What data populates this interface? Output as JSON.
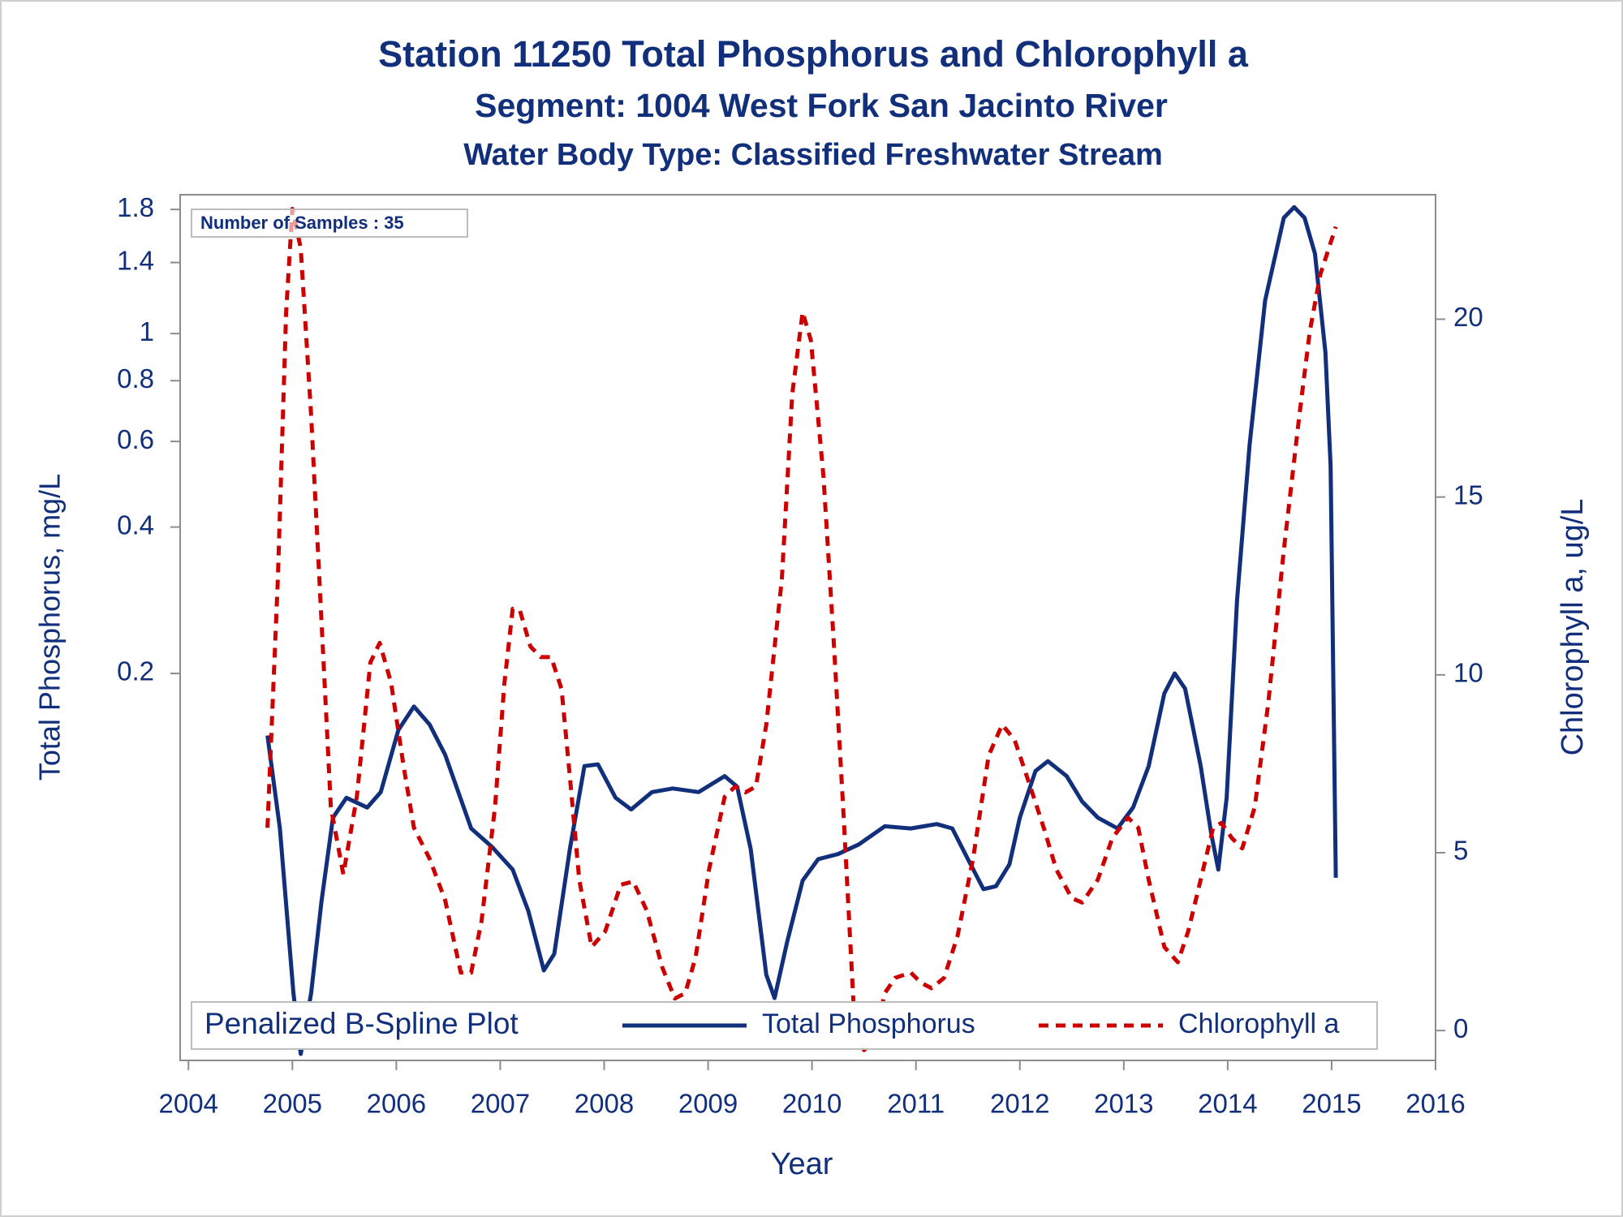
{
  "chart_data": {
    "type": "line",
    "title": "Station 11250  Total Phosphorus and Chlorophyll a",
    "subtitle": "Segment: 1004  West Fork San Jacinto River",
    "subtitle2": "Water Body Type: Classified Freshwater Stream",
    "annotation": "Number of Samples : 35",
    "legend_title": "Penalized B-Spline Plot",
    "legend": "bottom",
    "xlabel": "Year",
    "ylabel": "Total Phosphorus, mg/L",
    "y2label": "Chlorophyll a, ug/L",
    "xlim": [
      2003.92,
      2016
    ],
    "xticks": [
      2004,
      2005,
      2006,
      2007,
      2008,
      2009,
      2010,
      2011,
      2012,
      2013,
      2014,
      2015,
      2016
    ],
    "ylim": [
      0.032,
      1.93
    ],
    "ylog": true,
    "yticks": [
      0.2,
      0.4,
      0.6,
      0.8,
      1,
      1.4,
      1.8
    ],
    "y2lim": [
      -0.84,
      23.5
    ],
    "y2ticks": [
      0,
      5,
      10,
      15,
      20
    ],
    "series": [
      {
        "name": "Total Phosphorus",
        "color": "#112f7a",
        "dash": "solid",
        "x": [
          2004.76,
          2004.88,
          2005.01,
          2005.08,
          2005.18,
          2005.28,
          2005.39,
          2005.52,
          2005.72,
          2005.85,
          2006.02,
          2006.17,
          2006.32,
          2006.47,
          2006.72,
          2006.92,
          2007.12,
          2007.27,
          2007.42,
          2007.52,
          2007.67,
          2007.81,
          2007.94,
          2008.11,
          2008.26,
          2008.46,
          2008.66,
          2008.91,
          2009.16,
          2009.28,
          2009.41,
          2009.56,
          2009.64,
          2009.76,
          2009.91,
          2010.06,
          2010.25,
          2010.45,
          2010.7,
          2010.95,
          2011.2,
          2011.35,
          2011.5,
          2011.65,
          2011.77,
          2011.9,
          2012.0,
          2012.15,
          2012.27,
          2012.45,
          2012.6,
          2012.75,
          2012.94,
          2013.09,
          2013.24,
          2013.39,
          2013.49,
          2013.59,
          2013.74,
          2013.84,
          2013.91,
          2013.99,
          2014.09,
          2014.21,
          2014.36,
          2014.54,
          2014.64,
          2014.74,
          2014.84,
          2014.94,
          2014.99,
          2015.04
        ],
        "values": [
          0.149,
          0.096,
          0.044,
          0.033,
          0.044,
          0.068,
          0.101,
          0.111,
          0.106,
          0.114,
          0.153,
          0.171,
          0.157,
          0.136,
          0.096,
          0.088,
          0.079,
          0.065,
          0.049,
          0.053,
          0.087,
          0.129,
          0.13,
          0.111,
          0.105,
          0.114,
          0.116,
          0.114,
          0.123,
          0.117,
          0.087,
          0.048,
          0.043,
          0.056,
          0.075,
          0.083,
          0.085,
          0.089,
          0.097,
          0.096,
          0.098,
          0.096,
          0.083,
          0.072,
          0.073,
          0.081,
          0.101,
          0.126,
          0.132,
          0.123,
          0.109,
          0.101,
          0.096,
          0.106,
          0.129,
          0.182,
          0.2,
          0.186,
          0.129,
          0.094,
          0.079,
          0.111,
          0.283,
          0.589,
          1.17,
          1.73,
          1.82,
          1.73,
          1.46,
          0.915,
          0.534,
          0.076
        ]
      },
      {
        "name": "Chlorophyll a",
        "color": "#cc0000",
        "dash": "dashed",
        "axis": "y2",
        "x": [
          2004.76,
          2004.86,
          2004.94,
          2005.0,
          2005.08,
          2005.18,
          2005.28,
          2005.37,
          2005.49,
          2005.62,
          2005.75,
          2005.84,
          2005.95,
          2006.07,
          2006.17,
          2006.32,
          2006.47,
          2006.62,
          2006.72,
          2006.82,
          2006.95,
          2007.04,
          2007.12,
          2007.19,
          2007.29,
          2007.39,
          2007.49,
          2007.59,
          2007.67,
          2007.76,
          2007.88,
          2008.01,
          2008.16,
          2008.28,
          2008.41,
          2008.56,
          2008.68,
          2008.78,
          2008.88,
          2009.01,
          2009.16,
          2009.26,
          2009.36,
          2009.46,
          2009.56,
          2009.71,
          2009.81,
          2009.91,
          2009.99,
          2010.11,
          2010.21,
          2010.3,
          2010.4,
          2010.5,
          2010.6,
          2010.7,
          2010.8,
          2010.95,
          2011.05,
          2011.15,
          2011.27,
          2011.4,
          2011.55,
          2011.7,
          2011.83,
          2011.95,
          2012.1,
          2012.23,
          2012.35,
          2012.5,
          2012.6,
          2012.75,
          2012.89,
          2013.04,
          2013.14,
          2013.24,
          2013.39,
          2013.52,
          2013.62,
          2013.74,
          2013.86,
          2013.94,
          2014.04,
          2014.14,
          2014.26,
          2014.39,
          2014.54,
          2014.69,
          2014.79,
          2014.89,
          2015.04
        ],
        "values": [
          5.7,
          12.7,
          20.2,
          23.1,
          22.0,
          17.3,
          11.5,
          6.28,
          4.39,
          6.57,
          10.35,
          10.9,
          9.77,
          7.44,
          5.7,
          4.83,
          3.66,
          1.63,
          1.63,
          3.08,
          6.28,
          9.77,
          11.86,
          11.8,
          10.8,
          10.5,
          10.5,
          9.6,
          7.15,
          4.24,
          2.35,
          2.79,
          4.1,
          4.19,
          3.37,
          1.77,
          0.9,
          1.05,
          2.06,
          4.53,
          6.57,
          6.86,
          6.7,
          6.86,
          8.6,
          12.7,
          17.9,
          20.2,
          19.4,
          15.6,
          10.9,
          6.28,
          0.76,
          -0.55,
          -0.26,
          1.05,
          1.48,
          1.63,
          1.34,
          1.19,
          1.48,
          2.65,
          4.83,
          7.73,
          8.6,
          8.17,
          6.86,
          5.7,
          4.53,
          3.72,
          3.6,
          4.24,
          5.41,
          5.99,
          5.7,
          4.24,
          2.35,
          1.92,
          2.79,
          4.24,
          5.7,
          5.84,
          5.41,
          5.12,
          6.28,
          9.19,
          13.5,
          17.3,
          19.65,
          21.25,
          22.6
        ]
      }
    ]
  }
}
